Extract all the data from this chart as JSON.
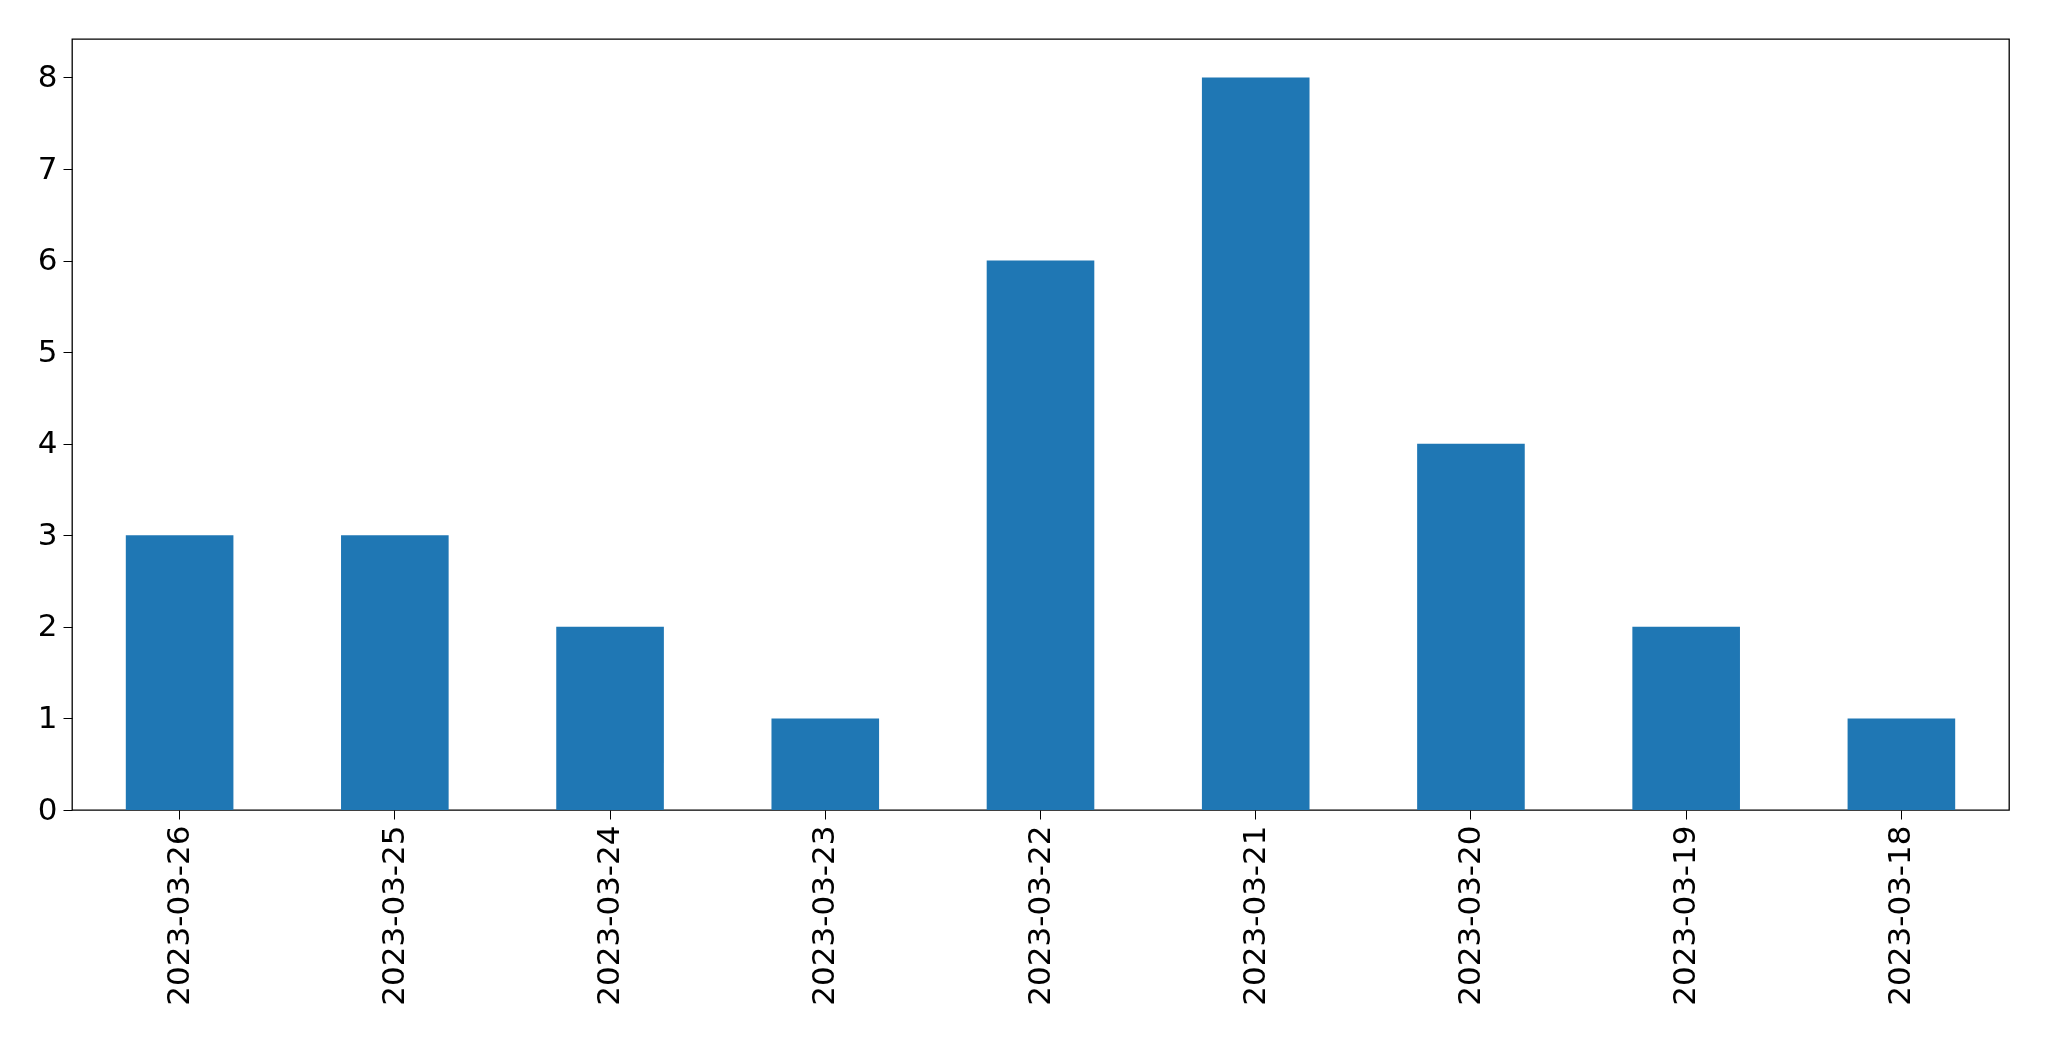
{
  "chart_data": {
    "type": "bar",
    "categories": [
      "2023-03-26",
      "2023-03-25",
      "2023-03-24",
      "2023-03-23",
      "2023-03-22",
      "2023-03-21",
      "2023-03-20",
      "2023-03-19",
      "2023-03-18"
    ],
    "values": [
      3,
      3,
      2,
      1,
      6,
      8,
      4,
      2,
      1
    ],
    "color": "#1f77b4",
    "ylim": [
      0,
      8.42
    ],
    "yticks": [
      0,
      1,
      2,
      3,
      4,
      5,
      6,
      7,
      8
    ],
    "grid": false
  }
}
